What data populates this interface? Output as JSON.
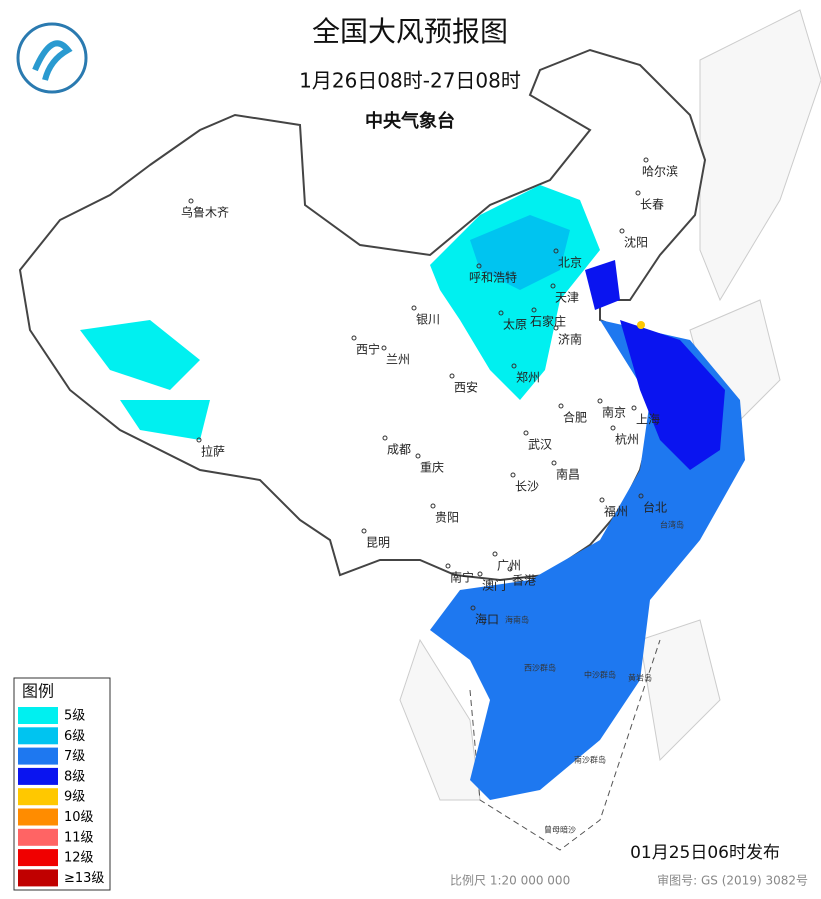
{
  "header": {
    "title": "全国大风预报图",
    "period": "1月26日08时-27日08时",
    "issuer": "中央气象台"
  },
  "legend": {
    "title": "图例",
    "items": [
      {
        "label": "5级",
        "color": "#00f0f0"
      },
      {
        "label": "6级",
        "color": "#00c4f0"
      },
      {
        "label": "7级",
        "color": "#1e78f0"
      },
      {
        "label": "8级",
        "color": "#0a14f0"
      },
      {
        "label": "9级",
        "color": "#ffc800"
      },
      {
        "label": "10级",
        "color": "#ff8c00"
      },
      {
        "label": "11级",
        "color": "#ff6464"
      },
      {
        "label": "12级",
        "color": "#f00000"
      },
      {
        "label": "≥13级",
        "color": "#c00000"
      }
    ]
  },
  "cities": [
    "乌鲁木齐",
    "哈尔滨",
    "长春",
    "沈阳",
    "呼和浩特",
    "北京",
    "天津",
    "银川",
    "太原",
    "石家庄",
    "济南",
    "西宁",
    "兰州",
    "郑州",
    "西安",
    "合肥",
    "南京",
    "上海",
    "杭州",
    "成都",
    "武汉",
    "重庆",
    "拉萨",
    "长沙",
    "南昌",
    "贵阳",
    "福州",
    "台北",
    "昆明",
    "南宁",
    "广州",
    "澳门",
    "香港",
    "海口"
  ],
  "islands": [
    "台湾岛",
    "海南岛",
    "西沙群岛",
    "中沙群岛",
    "黄岩岛",
    "南沙群岛",
    "曾母暗沙"
  ],
  "footer": {
    "release": "01月25日06时发布",
    "scale": "比例尺 1:20 000 000",
    "approval": "审图号: GS (2019) 3082号"
  }
}
